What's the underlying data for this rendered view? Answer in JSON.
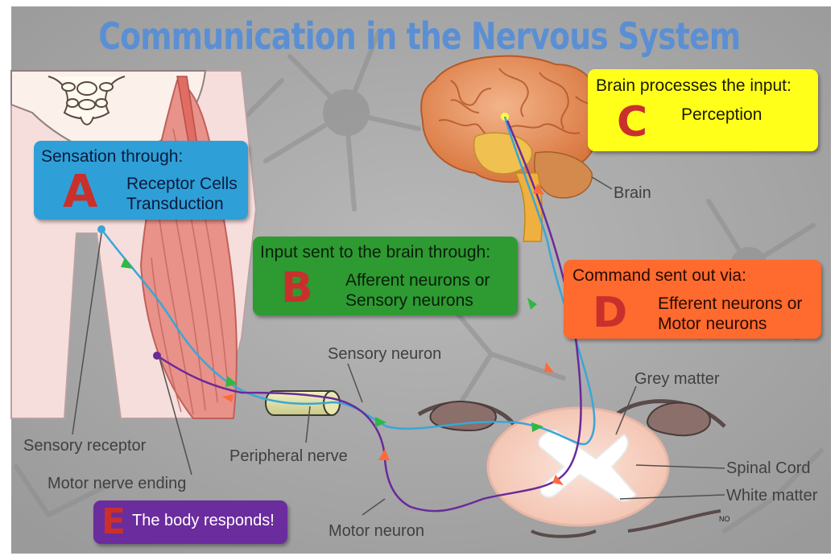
{
  "title": "Communication in the Nervous System",
  "boxes": {
    "a": {
      "heading": "Sensation through:",
      "letter": "A",
      "lines": [
        "Receptor Cells",
        "Transduction"
      ],
      "color": "#2f9fd8"
    },
    "b": {
      "heading": "Input sent to the brain through:",
      "letter": "B",
      "lines": [
        "Afferent neurons or",
        "Sensory neurons"
      ],
      "color": "#2e9a32"
    },
    "c": {
      "heading": "Brain processes the input:",
      "letter": "C",
      "lines": [
        "Perception"
      ],
      "color": "#ffff1a"
    },
    "d": {
      "heading": "Command sent out via:",
      "letter": "D",
      "lines": [
        "Efferent neurons or",
        "Motor neurons"
      ],
      "color": "#ff6a2e"
    },
    "e": {
      "letter": "E",
      "text": "The body responds!",
      "color": "#6b2c9e"
    }
  },
  "labels": {
    "brain": "Brain",
    "sensory_neuron": "Sensory neuron",
    "grey_matter": "Grey matter",
    "spinal_cord": "Spinal Cord",
    "white_matter": "White matter",
    "sensory_receptor": "Sensory receptor",
    "peripheral_nerve": "Peripheral nerve",
    "motor_nerve_ending": "Motor nerve ending",
    "motor_neuron": "Motor neuron"
  },
  "colors": {
    "background": "#a9a9a9",
    "sensory_path": "#3aa6d8",
    "motor_path": "#6a2a9a",
    "arrow_sensory": "#2fb845",
    "arrow_motor": "#ff6a3a"
  }
}
